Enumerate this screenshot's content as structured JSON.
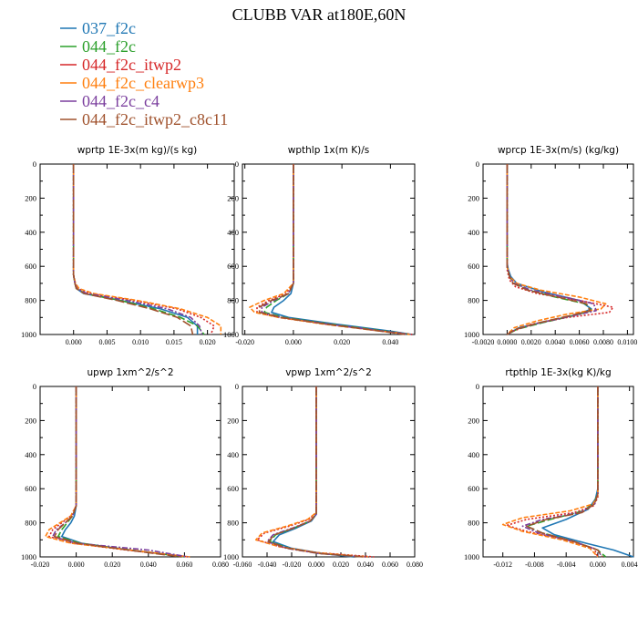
{
  "title": "CLUBB VAR at180E,60N",
  "legend": [
    {
      "label": "037_f2c",
      "color": "#1f77b4"
    },
    {
      "label": "044_f2c",
      "color": "#2ca02c"
    },
    {
      "label": "044_f2c_itwp2",
      "color": "#d62728"
    },
    {
      "label": "044_f2c_clearwp3",
      "color": "#ff7f0e"
    },
    {
      "label": "044_f2c_c4",
      "color": "#7b3f9e"
    },
    {
      "label": "044_f2c_itwp2_c8c11",
      "color": "#a0522d"
    }
  ],
  "chart_data": [
    {
      "type": "line",
      "title": "wprtp  1E-3x(m kg)/(s kg)",
      "xlim": [
        -0.005,
        0.024
      ],
      "ylim": [
        0,
        1000
      ],
      "y_inverted": true,
      "xticks": [
        0.0,
        0.005,
        0.01,
        0.015,
        0.02
      ],
      "xtick_labels": [
        "0.000",
        "0.005",
        "0.010",
        "0.015",
        "0.020"
      ],
      "yticks": [
        0,
        200,
        400,
        600,
        800,
        1000
      ],
      "series": [
        {
          "y": [
            0,
            650,
            700,
            730,
            760,
            800,
            850,
            900,
            950,
            1000
          ],
          "x": [
            0,
            0,
            0.0002,
            0.0004,
            0.0015,
            0.007,
            0.013,
            0.017,
            0.0185,
            0.0185
          ]
        },
        {
          "y": [
            0,
            650,
            700,
            730,
            760,
            800,
            850,
            900,
            950,
            1000
          ],
          "x": [
            0,
            0,
            0.0002,
            0.0004,
            0.0018,
            0.007,
            0.012,
            0.016,
            0.0185,
            0.0195
          ]
        },
        {
          "y": [
            0,
            650,
            700,
            730,
            760,
            800,
            850,
            900,
            950,
            1000
          ],
          "x": [
            0,
            0,
            0.0002,
            0.0006,
            0.0025,
            0.009,
            0.0155,
            0.019,
            0.021,
            0.0205
          ]
        },
        {
          "y": [
            0,
            650,
            700,
            730,
            760,
            800,
            850,
            900,
            950,
            1000
          ],
          "x": [
            0,
            0,
            0.0003,
            0.0008,
            0.003,
            0.0095,
            0.016,
            0.02,
            0.022,
            0.022
          ]
        },
        {
          "y": [
            0,
            650,
            700,
            730,
            760,
            800,
            850,
            900,
            950,
            1000
          ],
          "x": [
            0,
            0,
            0.0002,
            0.0005,
            0.002,
            0.008,
            0.014,
            0.0175,
            0.0188,
            0.0192
          ]
        },
        {
          "y": [
            0,
            650,
            700,
            730,
            760,
            800,
            850,
            900,
            950,
            1000
          ],
          "x": [
            0,
            0,
            0.0002,
            0.0004,
            0.0016,
            0.0065,
            0.0115,
            0.0155,
            0.0175,
            0.0178
          ]
        }
      ]
    },
    {
      "type": "line",
      "title": "wpthlp  1x(m K)/s",
      "xlim": [
        -0.021,
        0.05
      ],
      "ylim": [
        0,
        1000
      ],
      "y_inverted": true,
      "xticks": [
        -0.02,
        0.0,
        0.02,
        0.04
      ],
      "xtick_labels": [
        "-0.020",
        "0.000",
        "0.020",
        "0.040"
      ],
      "yticks": [
        0,
        200,
        400,
        600,
        800,
        1000
      ],
      "series": [
        {
          "y": [
            0,
            700,
            760,
            800,
            840,
            870,
            900,
            940,
            980,
            1000
          ],
          "x": [
            0,
            0,
            -0.001,
            -0.004,
            -0.008,
            -0.009,
            -0.002,
            0.018,
            0.04,
            0.049
          ]
        },
        {
          "y": [
            0,
            700,
            760,
            800,
            840,
            870,
            900,
            940,
            980,
            1000
          ],
          "x": [
            0,
            0,
            -0.002,
            -0.007,
            -0.011,
            -0.012,
            -0.004,
            0.016,
            0.038,
            0.048
          ]
        },
        {
          "y": [
            0,
            700,
            760,
            800,
            840,
            870,
            900,
            940,
            980,
            1000
          ],
          "x": [
            0,
            0,
            -0.003,
            -0.01,
            -0.015,
            -0.015,
            -0.006,
            0.014,
            0.037,
            0.049
          ]
        },
        {
          "y": [
            0,
            700,
            760,
            800,
            840,
            870,
            900,
            940,
            980,
            1000
          ],
          "x": [
            0,
            0,
            -0.004,
            -0.012,
            -0.018,
            -0.016,
            -0.006,
            0.013,
            0.036,
            0.048
          ]
        },
        {
          "y": [
            0,
            700,
            760,
            800,
            840,
            870,
            900,
            940,
            980,
            1000
          ],
          "x": [
            0,
            0,
            -0.002,
            -0.008,
            -0.013,
            -0.013,
            -0.005,
            0.015,
            0.037,
            0.047
          ]
        },
        {
          "y": [
            0,
            700,
            760,
            800,
            840,
            870,
            900,
            940,
            980,
            1000
          ],
          "x": [
            0,
            0,
            -0.002,
            -0.009,
            -0.014,
            -0.014,
            -0.005,
            0.014,
            0.036,
            0.046
          ]
        }
      ]
    },
    {
      "type": "line",
      "title": "wprcp  1E-3x(m/s) (kg/kg)",
      "xlim": [
        -0.002,
        0.0105
      ],
      "ylim": [
        0,
        1000
      ],
      "y_inverted": true,
      "xticks": [
        -0.002,
        0.0,
        0.002,
        0.004,
        0.006,
        0.008,
        0.01
      ],
      "xtick_labels": [
        "-0.0020",
        "0.0000",
        "0.0020",
        "0.0040",
        "0.0060",
        "0.0080",
        "0.0100"
      ],
      "yticks": [
        0,
        200,
        400,
        600,
        800,
        1000
      ],
      "series": [
        {
          "y": [
            0,
            580,
            620,
            660,
            700,
            750,
            800,
            850,
            880,
            920,
            960,
            1000
          ],
          "x": [
            0,
            0,
            0.0001,
            0.0003,
            0.0008,
            0.003,
            0.006,
            0.007,
            0.006,
            0.0035,
            0.001,
            0
          ]
        },
        {
          "y": [
            0,
            600,
            660,
            700,
            740,
            780,
            820,
            860,
            890,
            930,
            970,
            1000
          ],
          "x": [
            0,
            0,
            0.0002,
            0.0006,
            0.0018,
            0.004,
            0.0065,
            0.007,
            0.0055,
            0.003,
            0.0008,
            0
          ]
        },
        {
          "y": [
            0,
            620,
            680,
            720,
            760,
            800,
            840,
            870,
            900,
            940,
            980,
            1000
          ],
          "x": [
            0,
            0,
            0.0002,
            0.0007,
            0.0025,
            0.006,
            0.0088,
            0.0085,
            0.005,
            0.002,
            0.0005,
            0
          ]
        },
        {
          "y": [
            0,
            600,
            660,
            700,
            740,
            780,
            820,
            850,
            880,
            920,
            960,
            1000
          ],
          "x": [
            0,
            0,
            0.0002,
            0.0008,
            0.0028,
            0.006,
            0.0082,
            0.0078,
            0.005,
            0.0025,
            0.0006,
            0
          ]
        },
        {
          "y": [
            0,
            600,
            660,
            700,
            740,
            780,
            820,
            860,
            890,
            930,
            970,
            1000
          ],
          "x": [
            0,
            0,
            0.0002,
            0.0006,
            0.002,
            0.0048,
            0.0072,
            0.0074,
            0.0055,
            0.0028,
            0.0007,
            0
          ]
        },
        {
          "y": [
            0,
            600,
            660,
            700,
            740,
            780,
            820,
            860,
            890,
            930,
            970,
            1000
          ],
          "x": [
            0,
            0,
            0.0002,
            0.0005,
            0.0017,
            0.0042,
            0.0066,
            0.0069,
            0.0052,
            0.0027,
            0.0007,
            0
          ]
        }
      ]
    },
    {
      "type": "line",
      "title": "upwp  1xm^2/s^2",
      "xlim": [
        -0.02,
        0.08
      ],
      "ylim": [
        0,
        1000
      ],
      "y_inverted": true,
      "xticks": [
        -0.02,
        0.0,
        0.02,
        0.04,
        0.06,
        0.08
      ],
      "xtick_labels": [
        "-0.020",
        "0.000",
        "0.020",
        "0.040",
        "0.060",
        "0.080"
      ],
      "yticks": [
        0,
        200,
        400,
        600,
        800,
        1000
      ],
      "series": [
        {
          "y": [
            0,
            700,
            760,
            800,
            840,
            880,
            920,
            960,
            1000
          ],
          "x": [
            0,
            0,
            -0.001,
            -0.003,
            -0.006,
            -0.008,
            0.003,
            0.03,
            0.062
          ]
        },
        {
          "y": [
            0,
            700,
            760,
            800,
            840,
            880,
            920,
            960,
            1000
          ],
          "x": [
            0,
            0,
            -0.002,
            -0.005,
            -0.008,
            -0.01,
            0.002,
            0.03,
            0.06
          ]
        },
        {
          "y": [
            0,
            700,
            760,
            800,
            840,
            880,
            920,
            960,
            1000
          ],
          "x": [
            0,
            0,
            -0.003,
            -0.008,
            -0.013,
            -0.015,
            -0.002,
            0.028,
            0.062
          ]
        },
        {
          "y": [
            0,
            700,
            760,
            800,
            840,
            880,
            920,
            960,
            1000
          ],
          "x": [
            0,
            0,
            -0.003,
            -0.009,
            -0.015,
            -0.017,
            -0.003,
            0.03,
            0.063
          ]
        },
        {
          "y": [
            0,
            700,
            760,
            800,
            840,
            880,
            920,
            960,
            1000
          ],
          "x": [
            0,
            0,
            -0.002,
            -0.006,
            -0.011,
            -0.013,
            0.0,
            0.04,
            0.062
          ]
        },
        {
          "y": [
            0,
            700,
            760,
            800,
            840,
            880,
            920,
            960,
            1000
          ],
          "x": [
            0,
            0,
            -0.002,
            -0.006,
            -0.01,
            -0.012,
            0.001,
            0.029,
            0.058
          ]
        }
      ]
    },
    {
      "type": "line",
      "title": "vpwp  1xm^2/s^2",
      "xlim": [
        -0.06,
        0.08
      ],
      "ylim": [
        0,
        1000
      ],
      "y_inverted": true,
      "xticks": [
        -0.06,
        -0.04,
        -0.02,
        0.0,
        0.02,
        0.04,
        0.06,
        0.08
      ],
      "xtick_labels": [
        "-0.060",
        "-0.040",
        "-0.020",
        "0.000",
        "0.020",
        "0.040",
        "0.060",
        "0.080"
      ],
      "yticks": [
        0,
        200,
        400,
        600,
        800,
        1000
      ],
      "series": [
        {
          "y": [
            0,
            750,
            790,
            830,
            870,
            910,
            950,
            980,
            1000
          ],
          "x": [
            0,
            0,
            -0.004,
            -0.016,
            -0.03,
            -0.035,
            -0.02,
            0.005,
            0.03
          ]
        },
        {
          "y": [
            0,
            750,
            790,
            830,
            870,
            910,
            950,
            980,
            1000
          ],
          "x": [
            0,
            0,
            -0.005,
            -0.018,
            -0.033,
            -0.038,
            -0.022,
            0.004,
            0.04
          ]
        },
        {
          "y": [
            0,
            740,
            780,
            820,
            860,
            900,
            940,
            975,
            1000
          ],
          "x": [
            0,
            0,
            -0.006,
            -0.022,
            -0.042,
            -0.048,
            -0.03,
            0.0,
            0.047
          ]
        },
        {
          "y": [
            0,
            740,
            780,
            820,
            860,
            900,
            940,
            975,
            1000
          ],
          "x": [
            0,
            0,
            -0.007,
            -0.024,
            -0.044,
            -0.049,
            -0.03,
            0.0,
            0.042
          ]
        },
        {
          "y": [
            0,
            750,
            790,
            830,
            870,
            910,
            950,
            980,
            1000
          ],
          "x": [
            0,
            0,
            -0.005,
            -0.019,
            -0.035,
            -0.04,
            -0.024,
            0.002,
            0.04
          ]
        },
        {
          "y": [
            0,
            750,
            790,
            830,
            870,
            910,
            950,
            980,
            1000
          ],
          "x": [
            0,
            0,
            -0.005,
            -0.018,
            -0.034,
            -0.039,
            -0.023,
            0.003,
            0.038
          ]
        }
      ]
    },
    {
      "type": "line",
      "title": "rtpthlp  1E-3x(kg K)/kg",
      "xlim": [
        -0.0145,
        0.0045
      ],
      "ylim": [
        0,
        1000
      ],
      "y_inverted": true,
      "xticks": [
        -0.012,
        -0.008,
        -0.004,
        0.0,
        0.004
      ],
      "xtick_labels": [
        "-0.012",
        "-0.008",
        "-0.004",
        "0.000",
        "0.004"
      ],
      "yticks": [
        0,
        200,
        400,
        600,
        800,
        1000
      ],
      "series": [
        {
          "y": [
            0,
            600,
            660,
            720,
            780,
            830,
            870,
            920,
            960,
            1000
          ],
          "x": [
            0,
            0,
            -0.0003,
            -0.0012,
            -0.004,
            -0.007,
            -0.0055,
            -0.0015,
            0.002,
            0.0045
          ]
        },
        {
          "y": [
            0,
            620,
            680,
            730,
            780,
            820,
            860,
            910,
            960,
            1000
          ],
          "x": [
            0,
            0,
            -0.0004,
            -0.0018,
            -0.006,
            -0.009,
            -0.007,
            -0.003,
            0.0,
            0.001
          ]
        },
        {
          "y": [
            0,
            650,
            700,
            740,
            780,
            815,
            850,
            900,
            950,
            1000
          ],
          "x": [
            0,
            0,
            -0.0005,
            -0.003,
            -0.009,
            -0.0115,
            -0.009,
            -0.004,
            -0.0005,
            0.0
          ]
        },
        {
          "y": [
            0,
            640,
            690,
            730,
            770,
            810,
            850,
            900,
            950,
            1000
          ],
          "x": [
            0,
            0,
            -0.0006,
            -0.0035,
            -0.0095,
            -0.012,
            -0.0095,
            -0.0045,
            -0.001,
            0.0
          ]
        },
        {
          "y": [
            0,
            630,
            690,
            740,
            780,
            820,
            860,
            910,
            960,
            1000
          ],
          "x": [
            0,
            0,
            -0.0004,
            -0.0022,
            -0.007,
            -0.0095,
            -0.0075,
            -0.003,
            0.0,
            0.0005
          ]
        },
        {
          "y": [
            0,
            630,
            690,
            740,
            780,
            820,
            860,
            910,
            960,
            1000
          ],
          "x": [
            0,
            0,
            -0.0004,
            -0.002,
            -0.0065,
            -0.009,
            -0.007,
            -0.003,
            0.0,
            0.0006
          ]
        }
      ]
    }
  ]
}
